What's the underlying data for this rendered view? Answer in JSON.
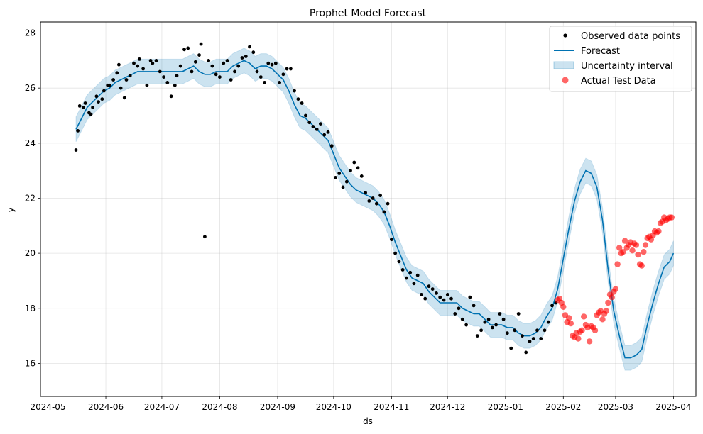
{
  "chart_data": {
    "type": "line",
    "title": "Prophet Model Forecast",
    "xlabel": "ds",
    "ylabel": "y",
    "xlim": [
      "2024-04-27",
      "2025-04-13"
    ],
    "ylim": [
      14.8,
      28.4
    ],
    "grid": true,
    "legend_position": "top-right",
    "x_ticks": [
      "2024-05",
      "2024-06",
      "2024-07",
      "2024-08",
      "2024-09",
      "2024-10",
      "2024-11",
      "2024-12",
      "2025-01",
      "2025-02",
      "2025-03",
      "2025-04"
    ],
    "y_ticks": [
      16,
      18,
      20,
      22,
      24,
      26,
      28
    ],
    "colors": {
      "observed": "#000000",
      "forecast": "#0072B2",
      "band": "#0072B2",
      "test": "#ff0000",
      "grid": "#b0b0b0"
    },
    "legend": [
      {
        "name": "Observed data points",
        "kind": "dot"
      },
      {
        "name": "Forecast",
        "kind": "line"
      },
      {
        "name": "Uncertainty interval",
        "kind": "band"
      },
      {
        "name": "Actual Test Data",
        "kind": "circle"
      }
    ],
    "forecast": {
      "x": [
        "2024-05-16",
        "2024-05-19",
        "2024-05-22",
        "2024-05-25",
        "2024-05-28",
        "2024-05-31",
        "2024-06-03",
        "2024-06-06",
        "2024-06-09",
        "2024-06-12",
        "2024-06-15",
        "2024-06-18",
        "2024-06-21",
        "2024-06-24",
        "2024-06-27",
        "2024-06-30",
        "2024-07-03",
        "2024-07-06",
        "2024-07-09",
        "2024-07-12",
        "2024-07-15",
        "2024-07-18",
        "2024-07-21",
        "2024-07-24",
        "2024-07-27",
        "2024-07-30",
        "2024-08-02",
        "2024-08-05",
        "2024-08-08",
        "2024-08-11",
        "2024-08-14",
        "2024-08-17",
        "2024-08-20",
        "2024-08-23",
        "2024-08-26",
        "2024-08-29",
        "2024-09-01",
        "2024-09-04",
        "2024-09-07",
        "2024-09-10",
        "2024-09-13",
        "2024-09-16",
        "2024-09-19",
        "2024-09-22",
        "2024-09-25",
        "2024-09-28",
        "2024-10-01",
        "2024-10-04",
        "2024-10-07",
        "2024-10-10",
        "2024-10-13",
        "2024-10-16",
        "2024-10-19",
        "2024-10-22",
        "2024-10-25",
        "2024-10-28",
        "2024-10-31",
        "2024-11-03",
        "2024-11-06",
        "2024-11-09",
        "2024-11-12",
        "2024-11-15",
        "2024-11-18",
        "2024-11-21",
        "2024-11-24",
        "2024-11-27",
        "2024-11-30",
        "2024-12-03",
        "2024-12-06",
        "2024-12-09",
        "2024-12-12",
        "2024-12-15",
        "2024-12-18",
        "2024-12-21",
        "2024-12-24",
        "2024-12-27",
        "2024-12-30",
        "2025-01-02",
        "2025-01-05",
        "2025-01-08",
        "2025-01-11",
        "2025-01-14",
        "2025-01-17",
        "2025-01-20",
        "2025-01-23",
        "2025-01-26",
        "2025-01-29",
        "2025-02-01",
        "2025-02-04",
        "2025-02-07",
        "2025-02-10",
        "2025-02-13",
        "2025-02-16",
        "2025-02-19",
        "2025-02-22",
        "2025-02-25",
        "2025-02-28",
        "2025-03-03",
        "2025-03-06",
        "2025-03-09",
        "2025-03-12",
        "2025-03-15",
        "2025-03-18",
        "2025-03-21",
        "2025-03-24",
        "2025-03-27",
        "2025-03-30",
        "2025-04-01"
      ],
      "y": [
        24.5,
        24.9,
        25.3,
        25.5,
        25.7,
        25.9,
        26.0,
        26.2,
        26.3,
        26.4,
        26.5,
        26.6,
        26.6,
        26.6,
        26.6,
        26.6,
        26.6,
        26.6,
        26.6,
        26.6,
        26.7,
        26.8,
        26.6,
        26.5,
        26.5,
        26.6,
        26.6,
        26.6,
        26.8,
        26.9,
        27.0,
        26.9,
        26.7,
        26.8,
        26.8,
        26.7,
        26.5,
        26.3,
        25.9,
        25.4,
        25.0,
        24.9,
        24.7,
        24.5,
        24.3,
        24.1,
        23.6,
        23.1,
        22.8,
        22.5,
        22.3,
        22.2,
        22.1,
        22.0,
        21.8,
        21.5,
        21.0,
        20.4,
        19.9,
        19.4,
        19.1,
        19.0,
        18.9,
        18.6,
        18.4,
        18.2,
        18.2,
        18.2,
        18.2,
        18.0,
        17.9,
        17.8,
        17.8,
        17.6,
        17.4,
        17.4,
        17.4,
        17.3,
        17.3,
        17.1,
        17.0,
        17.0,
        17.1,
        17.3,
        17.7,
        18.0,
        18.7,
        19.8,
        20.9,
        21.9,
        22.6,
        23.0,
        22.9,
        22.4,
        21.2,
        19.4,
        17.9,
        17.0,
        16.2,
        16.2,
        16.3,
        16.5,
        17.4,
        18.2,
        18.9,
        19.5,
        19.7,
        20.0
      ]
    },
    "uncertainty_half_width": 0.45,
    "observed": {
      "x": [
        "2024-05-16",
        "2024-05-17",
        "2024-05-18",
        "2024-05-20",
        "2024-05-21",
        "2024-05-23",
        "2024-05-24",
        "2024-05-25",
        "2024-05-27",
        "2024-05-28",
        "2024-05-30",
        "2024-05-31",
        "2024-06-02",
        "2024-06-03",
        "2024-06-05",
        "2024-06-07",
        "2024-06-08",
        "2024-06-09",
        "2024-06-11",
        "2024-06-12",
        "2024-06-14",
        "2024-06-16",
        "2024-06-18",
        "2024-06-19",
        "2024-06-21",
        "2024-06-23",
        "2024-06-25",
        "2024-06-26",
        "2024-06-28",
        "2024-06-30",
        "2024-07-02",
        "2024-07-04",
        "2024-07-06",
        "2024-07-08",
        "2024-07-09",
        "2024-07-11",
        "2024-07-13",
        "2024-07-15",
        "2024-07-17",
        "2024-07-19",
        "2024-07-21",
        "2024-07-22",
        "2024-07-24",
        "2024-07-26",
        "2024-07-28",
        "2024-07-30",
        "2024-08-01",
        "2024-08-03",
        "2024-08-05",
        "2024-08-07",
        "2024-08-09",
        "2024-08-11",
        "2024-08-13",
        "2024-08-15",
        "2024-08-17",
        "2024-08-19",
        "2024-08-21",
        "2024-08-23",
        "2024-08-25",
        "2024-08-27",
        "2024-08-29",
        "2024-08-31",
        "2024-09-02",
        "2024-09-04",
        "2024-09-06",
        "2024-09-08",
        "2024-09-10",
        "2024-09-12",
        "2024-09-14",
        "2024-09-16",
        "2024-09-18",
        "2024-09-20",
        "2024-09-22",
        "2024-09-24",
        "2024-09-26",
        "2024-09-28",
        "2024-09-30",
        "2024-10-02",
        "2024-10-04",
        "2024-10-06",
        "2024-10-08",
        "2024-10-10",
        "2024-10-12",
        "2024-10-14",
        "2024-10-16",
        "2024-10-18",
        "2024-10-20",
        "2024-10-22",
        "2024-10-24",
        "2024-10-26",
        "2024-10-28",
        "2024-10-30",
        "2024-11-01",
        "2024-11-03",
        "2024-11-05",
        "2024-11-07",
        "2024-11-09",
        "2024-11-11",
        "2024-11-13",
        "2024-11-15",
        "2024-11-17",
        "2024-11-19",
        "2024-11-21",
        "2024-11-23",
        "2024-11-25",
        "2024-11-27",
        "2024-11-29",
        "2024-12-01",
        "2024-12-03",
        "2024-12-05",
        "2024-12-07",
        "2024-12-09",
        "2024-12-11",
        "2024-12-13",
        "2024-12-15",
        "2024-12-17",
        "2024-12-19",
        "2024-12-21",
        "2024-12-23",
        "2024-12-25",
        "2024-12-27",
        "2024-12-29",
        "2024-12-31",
        "2025-01-02",
        "2025-01-04",
        "2025-01-06",
        "2025-01-08",
        "2025-01-10",
        "2025-01-12",
        "2025-01-14",
        "2025-01-16",
        "2025-01-18",
        "2025-01-20",
        "2025-01-22",
        "2025-01-24",
        "2025-01-26",
        "2025-01-28"
      ],
      "y": [
        23.75,
        24.45,
        25.35,
        25.3,
        25.45,
        25.1,
        25.05,
        25.3,
        25.7,
        25.5,
        25.6,
        25.9,
        26.1,
        26.1,
        26.3,
        26.55,
        26.85,
        26.0,
        25.65,
        26.3,
        26.45,
        26.9,
        26.8,
        27.05,
        26.7,
        26.1,
        27.0,
        26.9,
        27.0,
        26.6,
        26.4,
        26.2,
        25.7,
        26.1,
        26.45,
        26.8,
        27.4,
        27.45,
        26.6,
        26.95,
        27.2,
        27.6,
        20.6,
        27.0,
        26.8,
        26.5,
        26.4,
        26.9,
        27.0,
        26.3,
        26.6,
        26.8,
        27.1,
        27.15,
        27.5,
        27.3,
        26.6,
        26.4,
        26.2,
        26.9,
        26.85,
        26.9,
        26.2,
        26.5,
        26.7,
        26.7,
        25.9,
        25.6,
        25.45,
        25.0,
        24.75,
        24.6,
        24.5,
        24.7,
        24.3,
        24.4,
        23.9,
        22.75,
        22.9,
        22.4,
        22.6,
        23.0,
        23.3,
        23.1,
        22.8,
        22.2,
        21.9,
        22.0,
        21.8,
        22.1,
        21.5,
        21.8,
        20.5,
        20.0,
        19.7,
        19.4,
        19.1,
        19.3,
        18.9,
        19.2,
        18.5,
        18.35,
        18.8,
        18.7,
        18.55,
        18.4,
        18.3,
        18.5,
        18.35,
        17.8,
        18.0,
        17.6,
        17.4,
        18.4,
        18.1,
        17.0,
        17.2,
        17.5,
        17.6,
        17.3,
        17.4,
        17.8,
        17.6,
        17.1,
        16.55,
        17.2,
        17.8,
        17.0,
        16.4,
        16.8,
        16.9,
        17.2,
        16.9,
        17.2,
        17.5,
        18.1,
        18.2
      ]
    },
    "actual_test": {
      "x": [
        "2025-01-29",
        "2025-01-30",
        "2025-01-31",
        "2025-02-01",
        "2025-02-02",
        "2025-02-03",
        "2025-02-04",
        "2025-02-05",
        "2025-02-06",
        "2025-02-07",
        "2025-02-08",
        "2025-02-09",
        "2025-02-10",
        "2025-02-11",
        "2025-02-12",
        "2025-02-13",
        "2025-02-14",
        "2025-02-15",
        "2025-02-16",
        "2025-02-17",
        "2025-02-18",
        "2025-02-19",
        "2025-02-20",
        "2025-02-21",
        "2025-02-22",
        "2025-02-23",
        "2025-02-24",
        "2025-02-25",
        "2025-02-26",
        "2025-02-27",
        "2025-02-28",
        "2025-03-01",
        "2025-03-02",
        "2025-03-03",
        "2025-03-04",
        "2025-03-05",
        "2025-03-06",
        "2025-03-07",
        "2025-03-08",
        "2025-03-09",
        "2025-03-10",
        "2025-03-11",
        "2025-03-12",
        "2025-03-13",
        "2025-03-14",
        "2025-03-15",
        "2025-03-16",
        "2025-03-17",
        "2025-03-18",
        "2025-03-19",
        "2025-03-20",
        "2025-03-21",
        "2025-03-22",
        "2025-03-23",
        "2025-03-24",
        "2025-03-25",
        "2025-03-26",
        "2025-03-27",
        "2025-03-28",
        "2025-03-29",
        "2025-03-30",
        "2025-03-31"
      ],
      "y": [
        18.3,
        18.35,
        18.2,
        18.05,
        17.75,
        17.5,
        17.65,
        17.45,
        17.0,
        16.95,
        17.1,
        16.9,
        17.15,
        17.2,
        17.7,
        17.4,
        17.3,
        16.8,
        17.35,
        17.3,
        17.2,
        17.75,
        17.85,
        17.9,
        17.6,
        17.8,
        17.9,
        18.2,
        18.5,
        18.4,
        18.6,
        18.7,
        19.6,
        20.2,
        20.0,
        20.05,
        20.45,
        20.2,
        20.3,
        20.4,
        20.1,
        20.35,
        20.3,
        19.95,
        19.6,
        19.55,
        20.05,
        20.3,
        20.55,
        20.6,
        20.5,
        20.65,
        20.8,
        20.75,
        20.8,
        21.1,
        21.15,
        21.3,
        21.2,
        21.25,
        21.3,
        21.3
      ]
    }
  }
}
